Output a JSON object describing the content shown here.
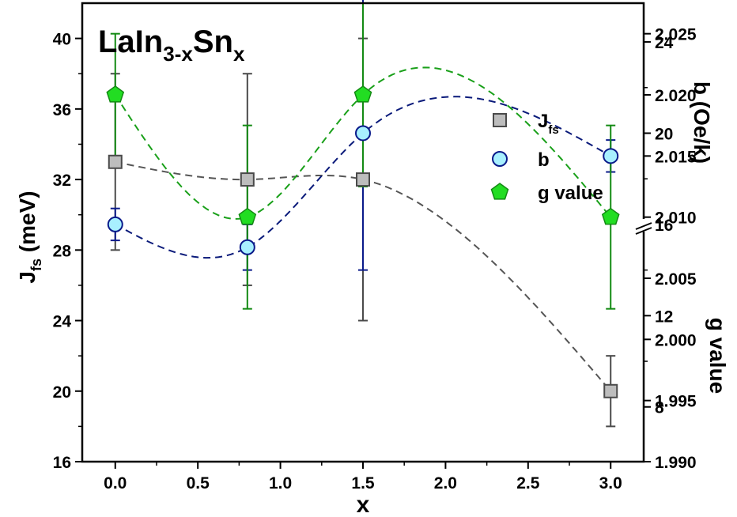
{
  "chart_data": {
    "type": "scatter",
    "x": [
      0.0,
      0.8,
      1.5,
      3.0
    ],
    "xlabel": "x",
    "xlim": [
      -0.2,
      3.2
    ],
    "xticks": [
      "0.0",
      "0.5",
      "1.0",
      "1.5",
      "2.0",
      "2.5",
      "3.0"
    ],
    "y_left": {
      "label_main": "J",
      "label_sub": "fs",
      "label_unit": " (meV)",
      "lim": [
        16,
        42
      ],
      "ticks": [
        "16",
        "20",
        "24",
        "28",
        "32",
        "36",
        "40"
      ]
    },
    "y_right_top": {
      "label": "b (Oe/k)",
      "lim": [
        5.6,
        25.7
      ],
      "ticks": [
        "8",
        "12",
        "16",
        "20",
        "24"
      ]
    },
    "y_right_bottom": {
      "label": "g value",
      "lim": [
        1.99,
        2.0275
      ],
      "ticks": [
        "1.990",
        "1.995",
        "2.000",
        "2.005",
        "2.010",
        "2.015",
        "2.020",
        "2.025"
      ]
    },
    "annotation": {
      "base": "LaIn",
      "sub1": "3-x",
      "mid": "Sn",
      "sub2": "x"
    },
    "legend_position": "right",
    "series": [
      {
        "name": "J",
        "name_sub": "fs",
        "axis": "left",
        "marker": "square",
        "color": "#bdbdbd",
        "edge": "#4a4a4a",
        "line_color": "#555555",
        "values": [
          33,
          32,
          32,
          20
        ],
        "errors": [
          5,
          6,
          8,
          2
        ]
      },
      {
        "name": "b",
        "name_sub": "",
        "axis": "right_top",
        "marker": "circle",
        "color": "#a8f0ff",
        "edge": "#0a1a8a",
        "line_color": "#0a1a7a",
        "values": [
          16,
          15,
          20,
          19
        ],
        "errors": [
          0.7,
          1.0,
          6.0,
          0.7
        ]
      },
      {
        "name": "g value",
        "name_sub": "",
        "axis": "right_bottom",
        "marker": "pentagon",
        "color": "#22dd22",
        "edge": "#138a13",
        "line_color": "#1aa01a",
        "values": [
          2.02,
          2.01,
          2.02,
          2.01
        ],
        "errors": [
          0.005,
          0.0075,
          0.0075,
          0.0075
        ]
      }
    ]
  }
}
